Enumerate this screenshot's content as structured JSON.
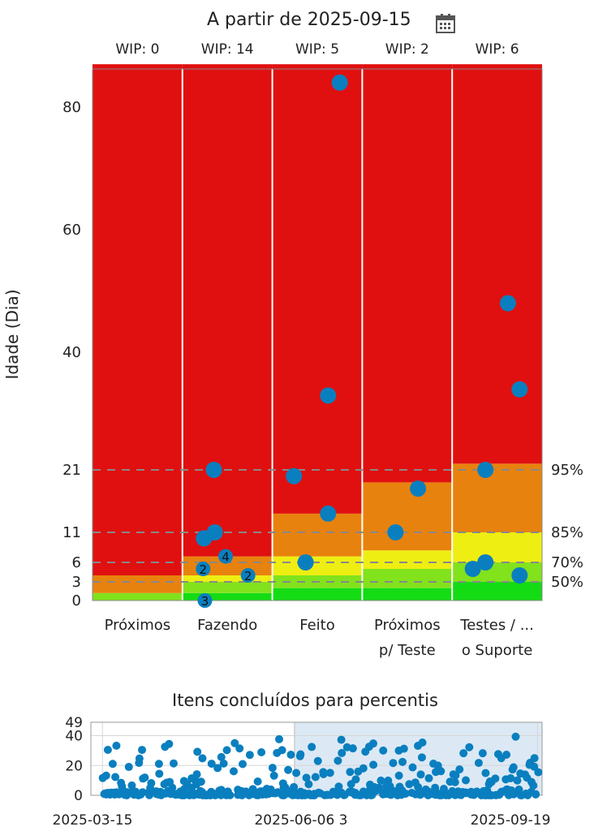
{
  "header": {
    "title": "A partir de 2025-09-15",
    "calendar_icon": "calendar-icon"
  },
  "chart_data": [
    {
      "type": "scatter",
      "ylabel": "Idade (Dia)",
      "ylim": [
        0,
        87
      ],
      "yticks": [
        0,
        3,
        6,
        11,
        21,
        40,
        60,
        80
      ],
      "grid": false,
      "columns": [
        {
          "label": [
            "Próximos"
          ],
          "wip": "WIP: 0",
          "bands": [
            {
              "from": 0,
              "to": 1.2,
              "color": "#82e21c"
            },
            {
              "from": 1.2,
              "to": 4,
              "color": "#e8820e"
            },
            {
              "from": 4,
              "to": 87,
              "color": "#e01010"
            }
          ],
          "points": []
        },
        {
          "label": [
            "Fazendo"
          ],
          "wip": "WIP: 14",
          "bands": [
            {
              "from": 0,
              "to": 1.2,
              "color": "#14dc14"
            },
            {
              "from": 1.2,
              "to": 3,
              "color": "#82e21c"
            },
            {
              "from": 3,
              "to": 4,
              "color": "#eeee12"
            },
            {
              "from": 4,
              "to": 7,
              "color": "#e8820e"
            },
            {
              "from": 7,
              "to": 87,
              "color": "#e01010"
            }
          ],
          "points": [
            {
              "x": 0.25,
              "y": 0,
              "count": "3"
            },
            {
              "x": 0.23,
              "y": 5,
              "count": "2"
            },
            {
              "x": 0.73,
              "y": 4,
              "count": "2"
            },
            {
              "x": 0.48,
              "y": 7,
              "count": "4"
            },
            {
              "x": 0.24,
              "y": 10
            },
            {
              "x": 0.36,
              "y": 11
            },
            {
              "x": 0.35,
              "y": 21
            }
          ]
        },
        {
          "label": [
            "Feito"
          ],
          "wip": "WIP: 5",
          "bands": [
            {
              "from": 0,
              "to": 2,
              "color": "#14dc14"
            },
            {
              "from": 2,
              "to": 4,
              "color": "#82e21c"
            },
            {
              "from": 4,
              "to": 7,
              "color": "#eeee12"
            },
            {
              "from": 7,
              "to": 14,
              "color": "#e8820e"
            },
            {
              "from": 14,
              "to": 87,
              "color": "#e01010"
            }
          ],
          "points": [
            {
              "x": 0.37,
              "y": 6
            },
            {
              "x": 0.62,
              "y": 14
            },
            {
              "x": 0.24,
              "y": 20
            },
            {
              "x": 0.62,
              "y": 33
            },
            {
              "x": 0.75,
              "y": 84
            }
          ]
        },
        {
          "label": [
            "Próximos",
            "p/ Teste"
          ],
          "wip": "WIP: 2",
          "bands": [
            {
              "from": 0,
              "to": 2,
              "color": "#14dc14"
            },
            {
              "from": 2,
              "to": 5,
              "color": "#82e21c"
            },
            {
              "from": 5,
              "to": 8,
              "color": "#eeee12"
            },
            {
              "from": 8,
              "to": 19,
              "color": "#e8820e"
            },
            {
              "from": 19,
              "to": 87,
              "color": "#e01010"
            }
          ],
          "points": [
            {
              "x": 0.37,
              "y": 11
            },
            {
              "x": 0.62,
              "y": 18
            }
          ]
        },
        {
          "label": [
            "Testes / ...",
            "o Suporte"
          ],
          "wip": "WIP: 6",
          "bands": [
            {
              "from": 0,
              "to": 3,
              "color": "#14dc14"
            },
            {
              "from": 3,
              "to": 6,
              "color": "#82e21c"
            },
            {
              "from": 6,
              "to": 11,
              "color": "#eeee12"
            },
            {
              "from": 11,
              "to": 22,
              "color": "#e8820e"
            },
            {
              "from": 22,
              "to": 87,
              "color": "#e01010"
            }
          ],
          "points": [
            {
              "x": 0.23,
              "y": 5
            },
            {
              "x": 0.75,
              "y": 4
            },
            {
              "x": 0.37,
              "y": 6
            },
            {
              "x": 0.37,
              "y": 21
            },
            {
              "x": 0.62,
              "y": 48
            },
            {
              "x": 0.75,
              "y": 34
            }
          ]
        }
      ],
      "percentiles": [
        {
          "label": "50%",
          "value": 3
        },
        {
          "label": "70%",
          "value": 6
        },
        {
          "label": "85%",
          "value": 11
        },
        {
          "label": "95%",
          "value": 21
        }
      ],
      "point_color": "#0a7fbf"
    },
    {
      "type": "scatter",
      "title": "Itens concluídos para percentis",
      "yticks": [
        0,
        20,
        40,
        49
      ],
      "ylim": [
        0,
        49
      ],
      "xticks": [
        "2025-03-15",
        "2025-06-06 3",
        "2025-09-19"
      ],
      "x_range": [
        "2025-03-10",
        "2025-09-21"
      ],
      "selection_range": [
        "2025-06-06",
        "2025-09-19"
      ],
      "grid": true,
      "point_color": "#0a7fbf"
    }
  ]
}
